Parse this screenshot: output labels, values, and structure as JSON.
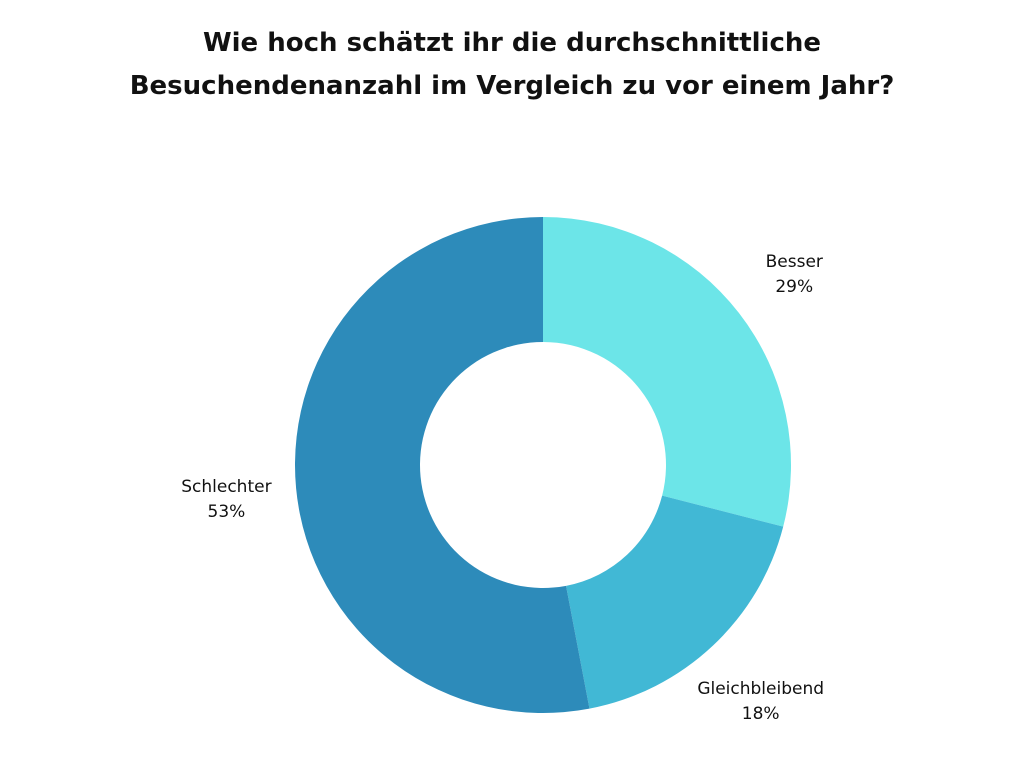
{
  "chart_data": {
    "type": "pie",
    "title_lines": [
      "Wie hoch schätzt ihr die durchschnittliche",
      "Besuchendenanzahl im Vergleich zu vor einem Jahr?"
    ],
    "categories": [
      "Besser",
      "Gleichbleibend",
      "Schlechter"
    ],
    "values": [
      29,
      18,
      53
    ],
    "value_labels": [
      "29%",
      "18%",
      "53%"
    ],
    "unit": "%",
    "donut": true,
    "legend": "none",
    "colors": [
      "#6ce5e8",
      "#41b8d5",
      "#2d8bba"
    ]
  }
}
